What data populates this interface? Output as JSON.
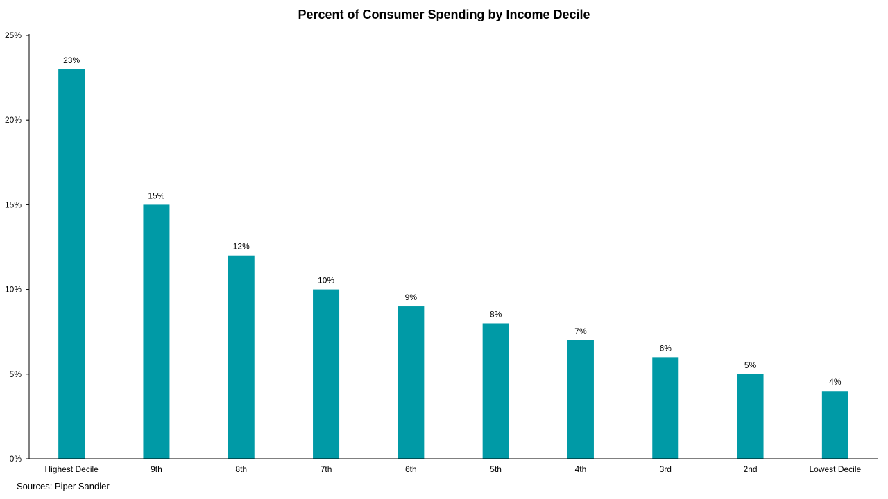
{
  "chart_data": {
    "type": "bar",
    "title": "Percent of Consumer Spending by Income Decile",
    "categories": [
      "Highest Decile",
      "9th",
      "8th",
      "7th",
      "6th",
      "5th",
      "4th",
      "3rd",
      "2nd",
      "Lowest Decile"
    ],
    "values": [
      23,
      15,
      12,
      10,
      9,
      8,
      7,
      6,
      5,
      4
    ],
    "data_labels": [
      "23%",
      "15%",
      "12%",
      "10%",
      "9%",
      "8%",
      "7%",
      "6%",
      "5%",
      "4%"
    ],
    "y_ticks": [
      0,
      5,
      10,
      15,
      20,
      25
    ],
    "y_tick_labels": [
      "0%",
      "5%",
      "10%",
      "15%",
      "20%",
      "25%"
    ],
    "ylim": [
      0,
      25
    ],
    "xlabel": "",
    "ylabel": "",
    "grid": false,
    "bar_color": "#009AA6"
  },
  "source": "Sources: Piper Sandler"
}
